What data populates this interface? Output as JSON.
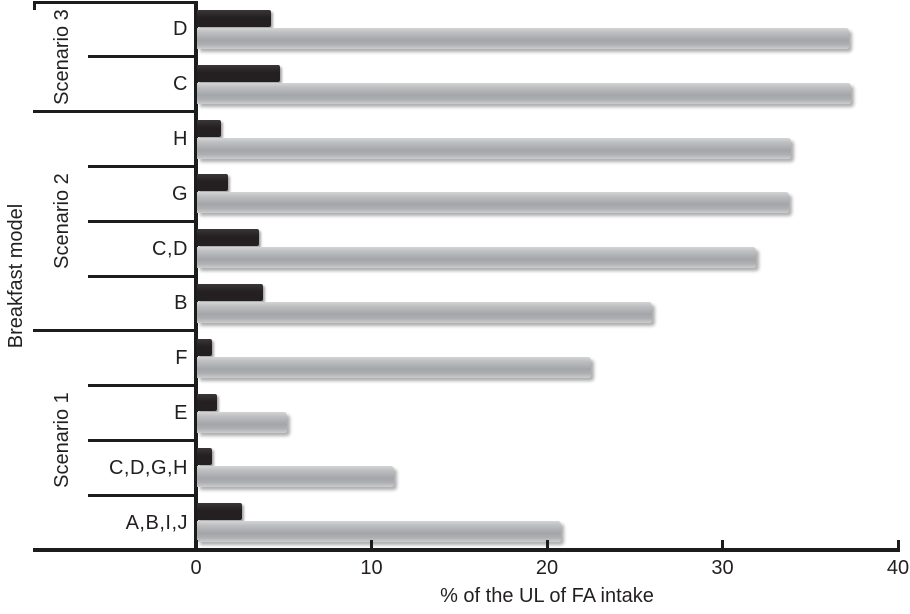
{
  "chart_data": {
    "type": "bar",
    "orientation": "horizontal",
    "title": "",
    "xlabel": "% of the UL of FA intake",
    "ylabel": "Breakfast model",
    "xlim": [
      0,
      40
    ],
    "xticks": [
      "0",
      "10",
      "20",
      "30",
      "40"
    ],
    "grid": false,
    "legend_position": "none",
    "categories": [
      "D",
      "C",
      "H",
      "G",
      "C,D",
      "B",
      "F",
      "E",
      "C,D,G,H",
      "A,B,I,J"
    ],
    "groups": [
      {
        "label": "Scenario 3",
        "start": 0,
        "end": 1
      },
      {
        "label": "Scenario 2",
        "start": 2,
        "end": 5
      },
      {
        "label": "Scenario 1",
        "start": 6,
        "end": 9
      }
    ],
    "series": [
      {
        "name": "black-bar-series",
        "color": "#242021",
        "values": [
          4.3,
          4.8,
          1.4,
          1.8,
          3.6,
          3.8,
          0.9,
          1.2,
          0.9,
          2.6
        ]
      },
      {
        "name": "gray-bar-series",
        "color": "#aeb0b3",
        "values": [
          37.2,
          37.3,
          33.9,
          33.8,
          31.9,
          26.0,
          22.5,
          5.2,
          11.3,
          20.8
        ]
      }
    ]
  },
  "colors": {
    "axis": "#1c1c1c",
    "text": "#231f20",
    "background": "#ffffff"
  }
}
